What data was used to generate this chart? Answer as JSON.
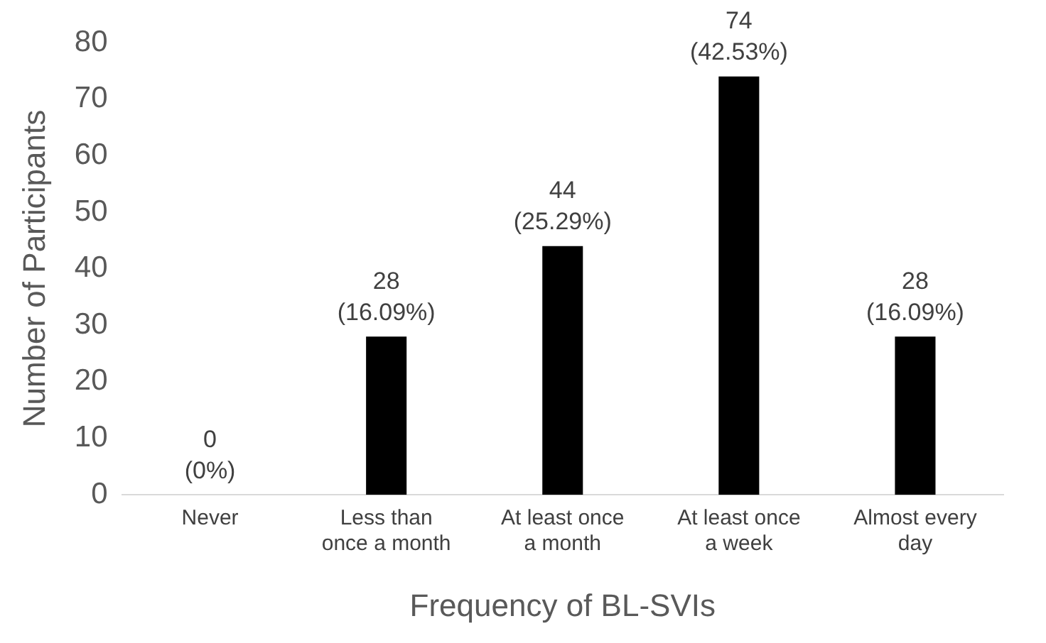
{
  "chart_data": {
    "type": "bar",
    "xlabel": "Frequency of BL-SVIs",
    "ylabel": "Number of Participants",
    "categories": [
      "Never",
      "Less than\nonce a month",
      "At least once\na month",
      "At least once\na week",
      "Almost every\nday"
    ],
    "values": [
      0,
      28,
      44,
      74,
      28
    ],
    "color": "#000000",
    "value_labels": [
      "0\n(0%)",
      "28\n(16.09%)",
      "44\n(25.29%)",
      "74\n(42.53%)",
      "28\n(16.09%)"
    ],
    "ylim": [
      0,
      80
    ],
    "yticks": [
      0,
      10,
      20,
      30,
      40,
      50,
      60,
      70,
      80
    ],
    "grid": false,
    "legend": false
  }
}
